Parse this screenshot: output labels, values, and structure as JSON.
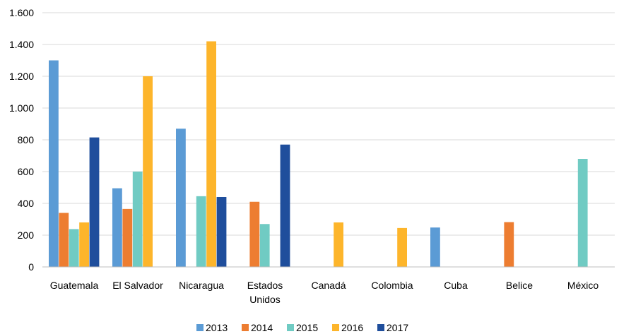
{
  "chart_data": {
    "type": "bar",
    "categories": [
      [
        "Guatemala"
      ],
      [
        "El Salvador"
      ],
      [
        "Nicaragua"
      ],
      [
        "Estados",
        "Unidos"
      ],
      [
        "Canadá"
      ],
      [
        "Colombia"
      ],
      [
        "Cuba"
      ],
      [
        "Belice"
      ],
      [
        "México"
      ]
    ],
    "series": [
      {
        "name": "2013",
        "color": "#5B9BD5",
        "values": [
          1300,
          495,
          870,
          0,
          0,
          0,
          248,
          0,
          0
        ]
      },
      {
        "name": "2014",
        "color": "#ED7D31",
        "values": [
          340,
          365,
          0,
          410,
          0,
          0,
          0,
          282,
          0
        ]
      },
      {
        "name": "2015",
        "color": "#70CBC3",
        "values": [
          238,
          600,
          445,
          270,
          0,
          0,
          0,
          0,
          680
        ]
      },
      {
        "name": "2016",
        "color": "#FDB52B",
        "values": [
          280,
          1200,
          1420,
          0,
          280,
          245,
          0,
          0,
          0
        ]
      },
      {
        "name": "2017",
        "color": "#1F4E9C",
        "values": [
          815,
          0,
          440,
          770,
          0,
          0,
          0,
          0,
          0
        ]
      }
    ],
    "ylim": [
      0,
      1600
    ],
    "yticks": [
      0,
      200,
      400,
      600,
      800,
      1000,
      1200,
      1400,
      1600
    ],
    "ytick_labels": [
      "0",
      "200",
      "400",
      "600",
      "800",
      "1.000",
      "1.200",
      "1.400",
      "1.600"
    ],
    "grid": true,
    "legend": "bottom-center",
    "colors": {
      "gridline": "#D9D9D9",
      "axis": "#BFBFBF"
    }
  }
}
